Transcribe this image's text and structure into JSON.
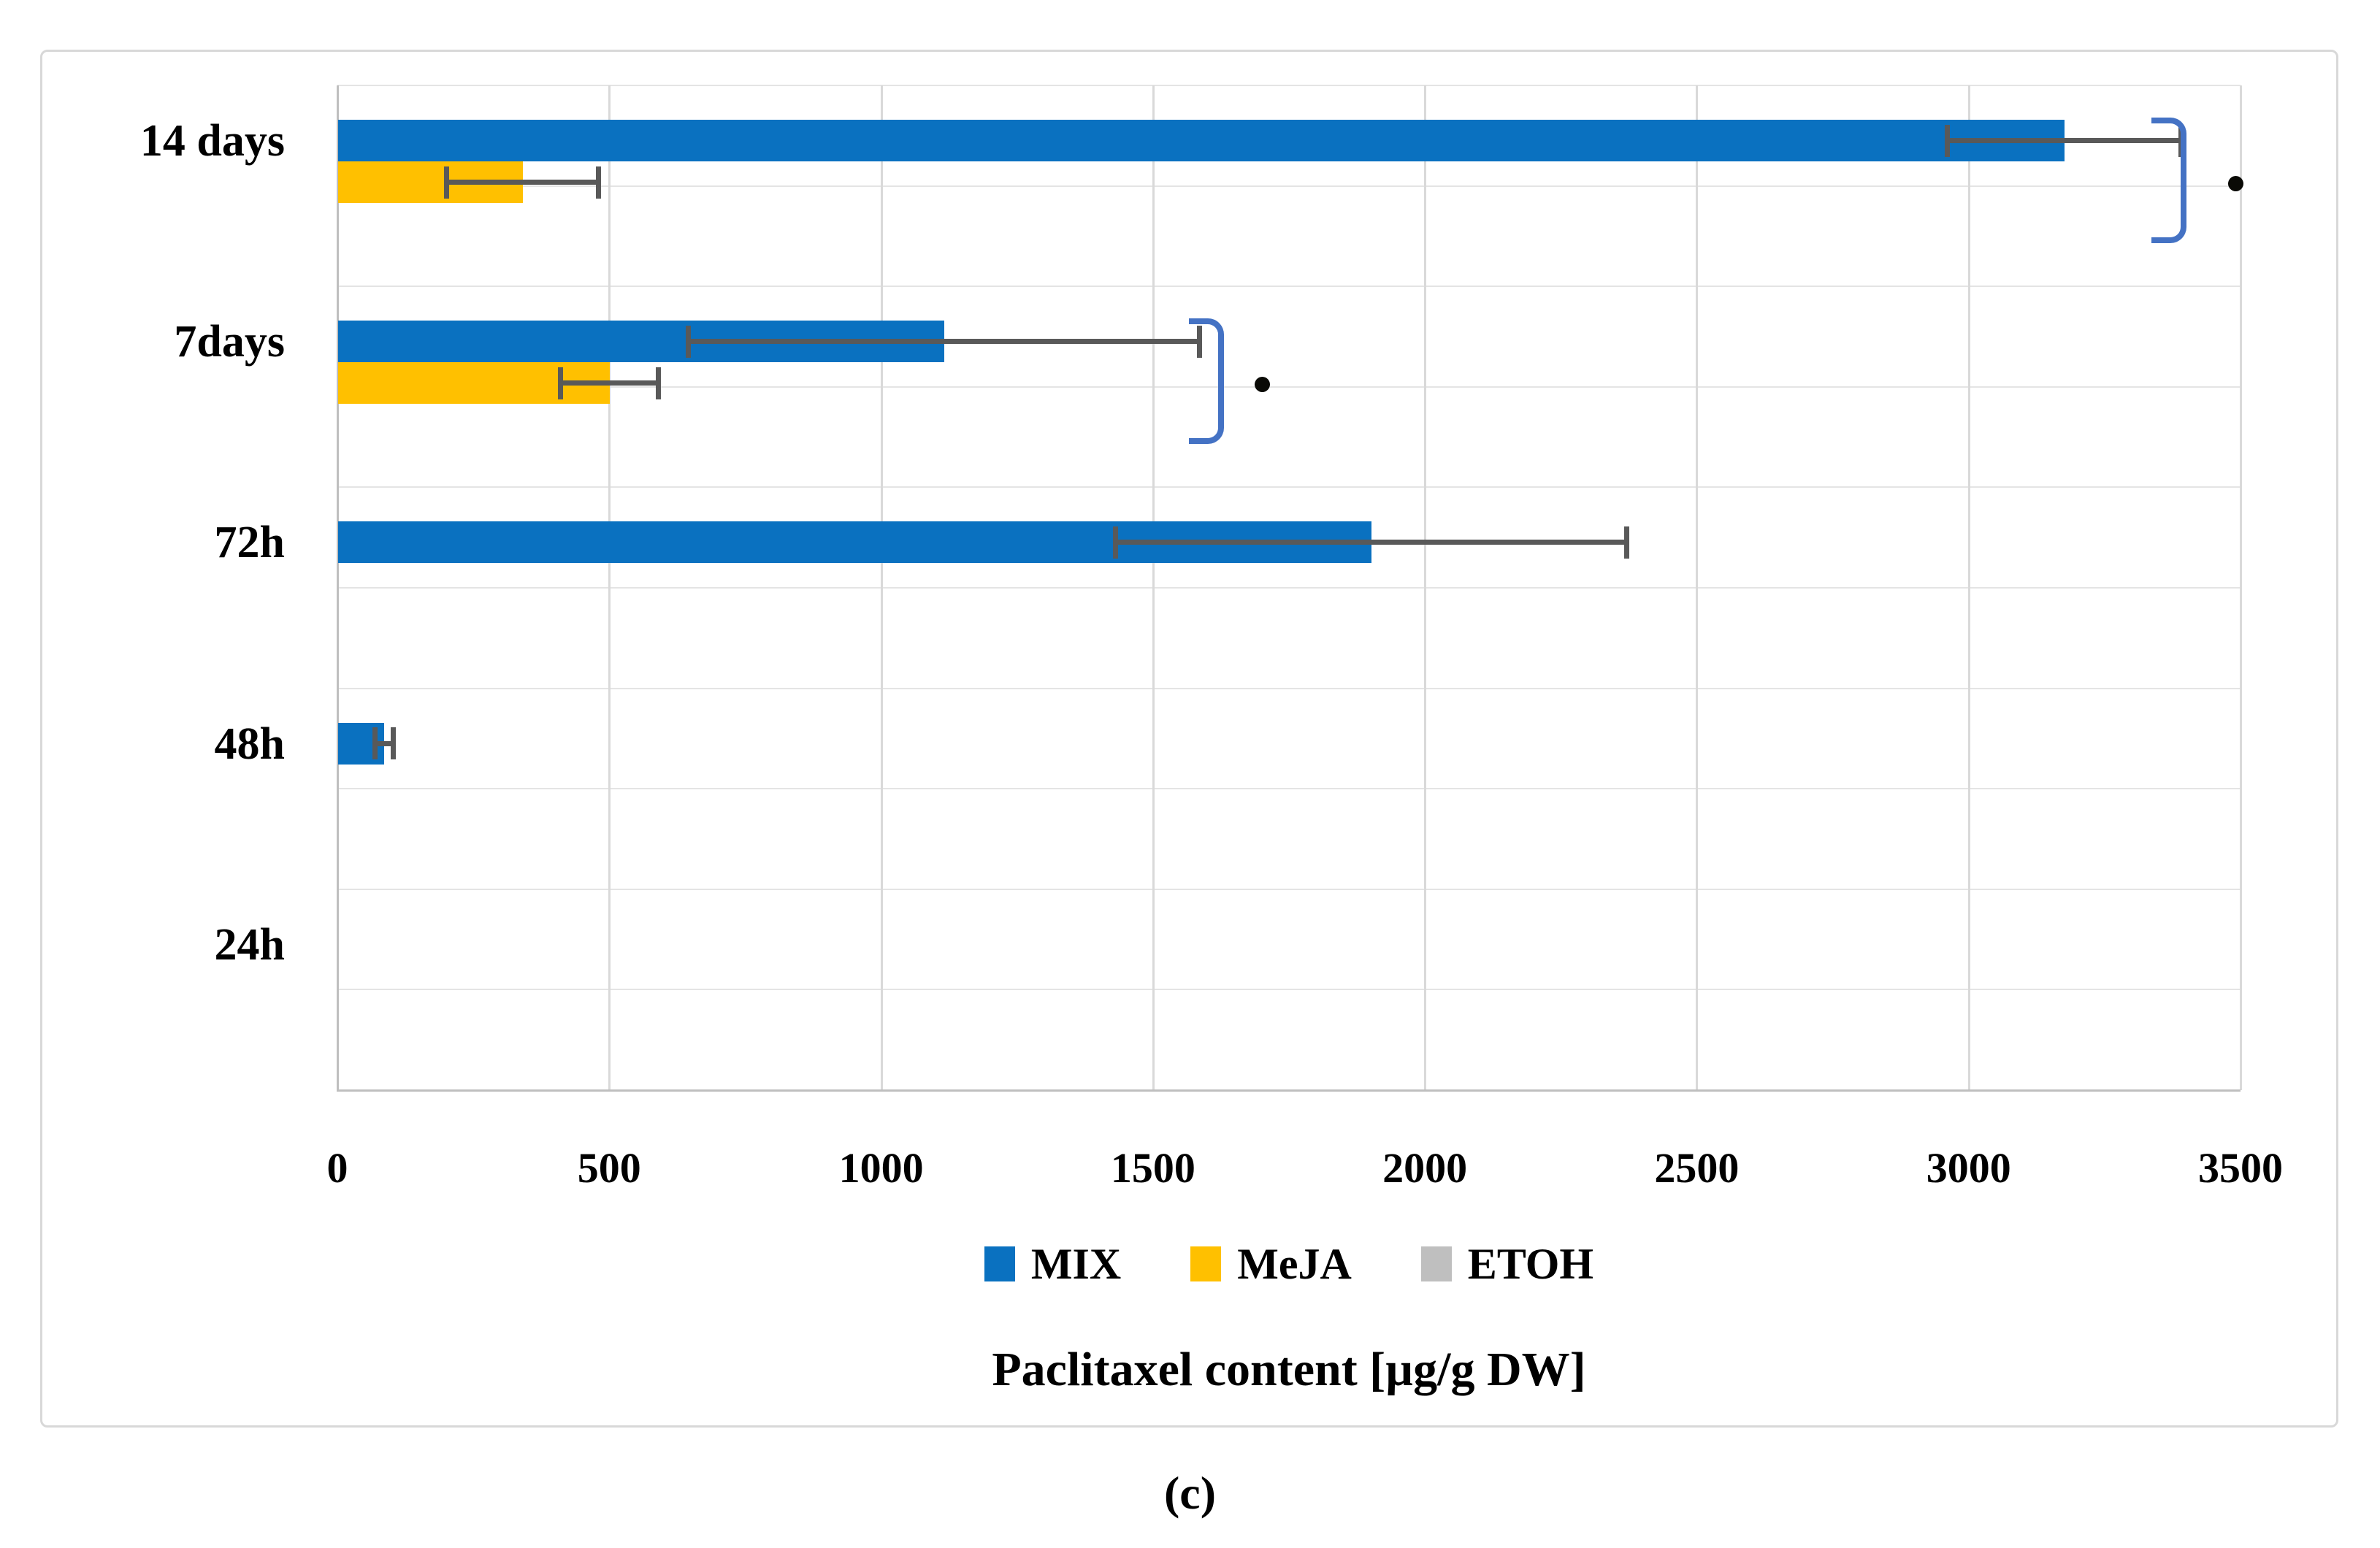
{
  "figure": {
    "caption": "(c)"
  },
  "chart_data": {
    "type": "bar",
    "orientation": "horizontal",
    "title": "",
    "xlabel": "Paclitaxel content [µg/g DW]",
    "ylabel": "",
    "categories": [
      "14 days",
      "7days",
      "72h",
      "48h",
      "24h"
    ],
    "series": [
      {
        "name": "MIX",
        "color": "#0a71c0",
        "values": [
          3175,
          1115,
          1900,
          85,
          0
        ],
        "errors": [
          215,
          470,
          470,
          17,
          0
        ]
      },
      {
        "name": "MeJA",
        "color": "#ffc000",
        "values": [
          340,
          500,
          0,
          0,
          0
        ],
        "errors": [
          140,
          90,
          0,
          0,
          0
        ]
      },
      {
        "name": "ETOH",
        "color": "#bfbfbf",
        "values": [
          0,
          0,
          0,
          0,
          0
        ],
        "errors": [
          0,
          0,
          0,
          0,
          0
        ]
      }
    ],
    "xlim": [
      0,
      3500
    ],
    "xticks": [
      "0",
      "500",
      "1000",
      "1500",
      "2000",
      "2500",
      "3000",
      "3500"
    ],
    "grid": true,
    "legend_position": "bottom",
    "error_bar_color": "#595959",
    "significance_marks": [
      {
        "category": "14 days",
        "bracket_end_x": 3400,
        "dot_x": 3490,
        "symbol": "dot"
      },
      {
        "category": "7days",
        "bracket_end_x": 1630,
        "dot_x": 1700,
        "symbol": "dot"
      }
    ],
    "significance_bracket_color": "#4472c4"
  }
}
